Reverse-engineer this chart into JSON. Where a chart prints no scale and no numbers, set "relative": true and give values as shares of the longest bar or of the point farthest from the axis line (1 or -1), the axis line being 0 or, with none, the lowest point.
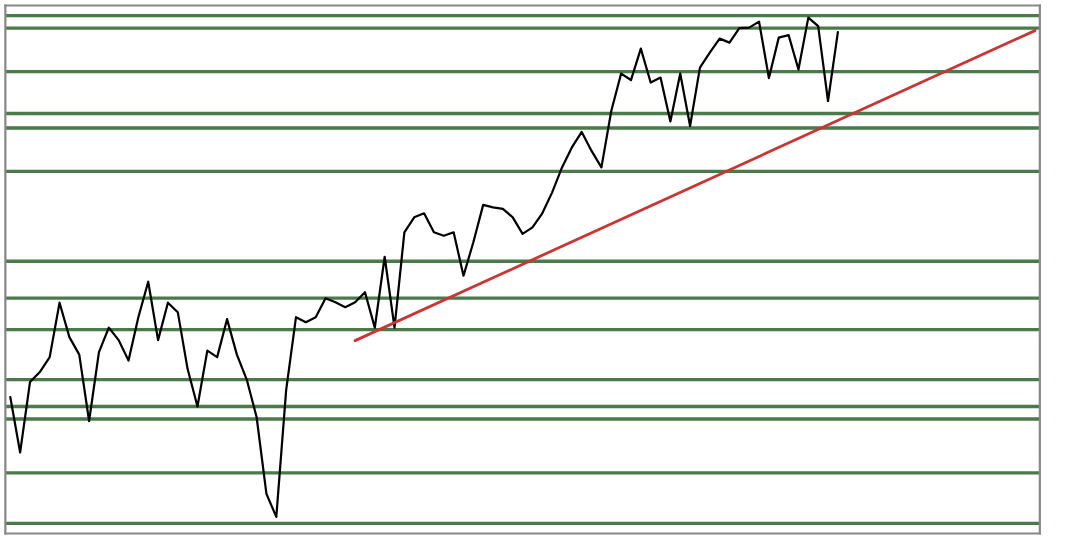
{
  "chart_data": {
    "type": "line",
    "relative": true,
    "categories": [
      null,
      null,
      null,
      null,
      null,
      null,
      null,
      null,
      null,
      null,
      null,
      null,
      null,
      null,
      null,
      null,
      null,
      null,
      null,
      null,
      null,
      null,
      null,
      null,
      null,
      null,
      null,
      null,
      null,
      null,
      null,
      null,
      null,
      null,
      null,
      null,
      null,
      null,
      null,
      null,
      null,
      null,
      null,
      null,
      null,
      null,
      null,
      null,
      null,
      null,
      null,
      null,
      null,
      null,
      null,
      null,
      null,
      null,
      null,
      null,
      null,
      null,
      null,
      null,
      null,
      null,
      null,
      null,
      null,
      null,
      null,
      null,
      null,
      null,
      null,
      null,
      null,
      null,
      null,
      null,
      null,
      null,
      null,
      null,
      null,
      null,
      null,
      null,
      null,
      null,
      null,
      null,
      null,
      null,
      null,
      null,
      null,
      null,
      null,
      null,
      null,
      null,
      null,
      null,
      null
    ],
    "series": [
      {
        "color": "#000000",
        "values": [
          0.24,
          0.129,
          0.27,
          0.29,
          0.32,
          0.429,
          0.36,
          0.325,
          0.192,
          0.33,
          0.379,
          0.354,
          0.313,
          0.4,
          0.471,
          0.354,
          0.429,
          0.41,
          0.296,
          0.221,
          0.333,
          0.32,
          0.396,
          0.325,
          0.275,
          0.2,
          0.046,
          0,
          0.254,
          0.4,
          0.39,
          0.4,
          0.438,
          0.43,
          0.42,
          0.43,
          0.45,
          0.379,
          0.521,
          0.379,
          0.57,
          0.6,
          0.608,
          0.57,
          0.563,
          0.57,
          0.483,
          0.55,
          0.625,
          0.62,
          0.617,
          0.6,
          0.567,
          0.58,
          0.608,
          0.65,
          0.7,
          0.74,
          0.771,
          0.733,
          0.7,
          0.813,
          0.888,
          0.875,
          0.938,
          0.87,
          0.88,
          0.792,
          0.888,
          0.783,
          0.9,
          0.93,
          0.958,
          0.95,
          0.979,
          0.98,
          0.992,
          0.879,
          0.96,
          0.965,
          0.896,
          1,
          0.983,
          0.833,
          0.971,
          null,
          null,
          null,
          null,
          null,
          null,
          null,
          null,
          null,
          null,
          null,
          null,
          null,
          null,
          null,
          null,
          null,
          null,
          null,
          null
        ]
      },
      {
        "color": "#cc3333",
        "values": [
          null,
          null,
          null,
          null,
          null,
          null,
          null,
          null,
          null,
          null,
          null,
          null,
          null,
          null,
          null,
          null,
          null,
          null,
          null,
          null,
          null,
          null,
          null,
          null,
          null,
          null,
          null,
          null,
          null,
          null,
          null,
          null,
          null,
          null,
          null,
          0.353,
          null,
          null,
          null,
          null,
          null,
          null,
          null,
          null,
          null,
          null,
          null,
          null,
          null,
          null,
          null,
          null,
          null,
          null,
          null,
          null,
          null,
          null,
          null,
          null,
          null,
          null,
          null,
          null,
          null,
          null,
          null,
          null,
          null,
          null,
          null,
          null,
          null,
          null,
          null,
          null,
          null,
          null,
          null,
          null,
          null,
          null,
          null,
          null,
          null,
          null,
          null,
          null,
          null,
          null,
          null,
          null,
          null,
          null,
          null,
          null,
          null,
          null,
          null,
          null,
          null,
          null,
          null,
          null,
          0.974
        ]
      }
    ],
    "ref_lines": [
      {
        "axis": "y",
        "value": 1.004,
        "color": "#4a7a4a"
      },
      {
        "axis": "y",
        "value": 0.979,
        "color": "#4a7a4a"
      },
      {
        "axis": "y",
        "value": 0.892,
        "color": "#4a7a4a"
      },
      {
        "axis": "y",
        "value": 0.808,
        "color": "#4a7a4a"
      },
      {
        "axis": "y",
        "value": 0.779,
        "color": "#4a7a4a"
      },
      {
        "axis": "y",
        "value": 0.692,
        "color": "#4a7a4a"
      },
      {
        "axis": "y",
        "value": 0.512,
        "color": "#4a7a4a"
      },
      {
        "axis": "y",
        "value": 0.438,
        "color": "#4a7a4a"
      },
      {
        "axis": "y",
        "value": 0.375,
        "color": "#4a7a4a"
      },
      {
        "axis": "y",
        "value": 0.275,
        "color": "#4a7a4a"
      },
      {
        "axis": "y",
        "value": 0.221,
        "color": "#4a7a4a"
      },
      {
        "axis": "y",
        "value": 0.196,
        "color": "#4a7a4a"
      },
      {
        "axis": "y",
        "value": 0.088,
        "color": "#4a7a4a"
      },
      {
        "axis": "y",
        "value": -0.013,
        "color": "#4a7a4a"
      }
    ]
  }
}
